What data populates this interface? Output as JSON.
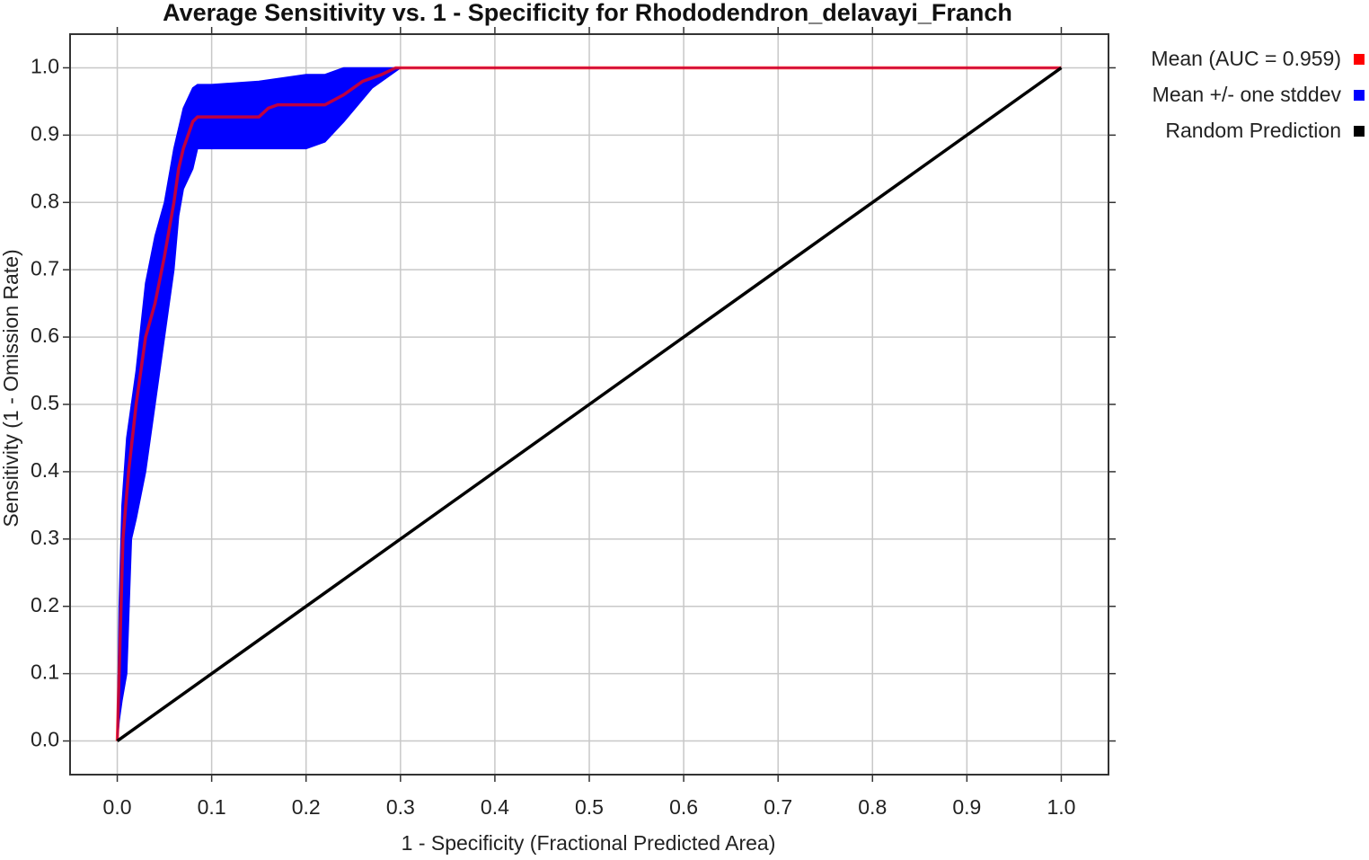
{
  "chart_data": {
    "type": "roc",
    "title": "Average Sensitivity vs. 1 - Specificity for Rhododendron_delavayi_Franch",
    "x_label": "1 - Specificity (Fractional Predicted Area)",
    "y_label": "Sensitivity (1 - Omission Rate)",
    "xlim": [
      -0.05,
      1.05
    ],
    "ylim": [
      -0.05,
      1.05
    ],
    "xticks": [
      {
        "value": 0,
        "label": "0.0"
      },
      0.1,
      0.2,
      0.3,
      0.4,
      0.5,
      0.6,
      0.7,
      0.8,
      0.9,
      {
        "value": 1,
        "label": "1.0"
      }
    ],
    "yticks": [
      {
        "value": 0,
        "label": "0.0"
      },
      0.1,
      0.2,
      0.3,
      0.4,
      0.5,
      0.6,
      0.7,
      0.8,
      0.9,
      {
        "value": 1,
        "label": "1.0"
      }
    ],
    "grid": true,
    "legend": "right",
    "band": {
      "name": "Mean +/- one stddev",
      "color": "#0000ff",
      "x": [
        0,
        0.002,
        0.005,
        0.01,
        0.015,
        0.02,
        0.03,
        0.04,
        0.05,
        0.06,
        0.065,
        0.07,
        0.08,
        0.085,
        0.1,
        0.15,
        0.2,
        0.22,
        0.24,
        0.27,
        0.3,
        1.0
      ],
      "upper": [
        0,
        0.2,
        0.35,
        0.45,
        0.5,
        0.55,
        0.68,
        0.75,
        0.8,
        0.88,
        0.91,
        0.94,
        0.97,
        0.975,
        0.975,
        0.98,
        0.99,
        0.99,
        1.0,
        1.0,
        1.0,
        1.0
      ],
      "lower": [
        0,
        0.03,
        0.06,
        0.1,
        0.3,
        0.33,
        0.4,
        0.5,
        0.6,
        0.7,
        0.78,
        0.82,
        0.85,
        0.88,
        0.88,
        0.88,
        0.88,
        0.89,
        0.92,
        0.97,
        1.0,
        1.0
      ]
    },
    "series": [
      {
        "name": "Mean (AUC = 0.959)",
        "color": "#ff0000",
        "x": [
          0,
          0.002,
          0.004,
          0.006,
          0.012,
          0.02,
          0.03,
          0.04,
          0.05,
          0.06,
          0.065,
          0.07,
          0.08,
          0.085,
          0.15,
          0.16,
          0.17,
          0.22,
          0.24,
          0.26,
          0.28,
          0.295,
          1.0
        ],
        "values": [
          0,
          0.1,
          0.2,
          0.3,
          0.4,
          0.5,
          0.6,
          0.65,
          0.72,
          0.8,
          0.85,
          0.88,
          0.92,
          0.927,
          0.927,
          0.94,
          0.945,
          0.945,
          0.96,
          0.98,
          0.99,
          1.0,
          1.0
        ]
      },
      {
        "name": "Random Prediction",
        "color": "#000000",
        "x": [
          0,
          1
        ],
        "values": [
          0,
          1
        ]
      }
    ]
  }
}
